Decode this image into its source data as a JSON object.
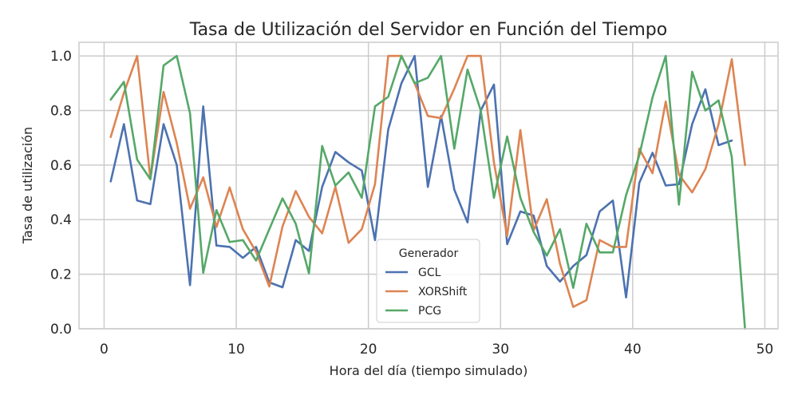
{
  "chart_data": {
    "type": "line",
    "title": "Tasa de Utilización del Servidor en Función del Tiempo",
    "xlabel": "Hora del día (tiempo simulado)",
    "ylabel": "Tasa de utilización",
    "xlim": [
      -1.9,
      51.0
    ],
    "ylim": [
      0.0,
      1.05
    ],
    "xticks": [
      0,
      10,
      20,
      30,
      40,
      50
    ],
    "yticks": [
      0.0,
      0.2,
      0.4,
      0.6,
      0.8,
      1.0
    ],
    "grid": true,
    "legend": {
      "title": "Generador",
      "placement": "bottom-center"
    },
    "x": [
      0.5,
      1.5,
      2.5,
      3.5,
      4.5,
      5.5,
      6.5,
      7.5,
      8.5,
      9.5,
      10.5,
      11.5,
      12.5,
      13.5,
      14.5,
      15.5,
      16.5,
      17.5,
      18.5,
      19.5,
      20.5,
      21.5,
      22.5,
      23.5,
      24.5,
      25.5,
      26.5,
      27.5,
      28.5,
      29.5,
      30.5,
      31.5,
      32.5,
      33.5,
      34.5,
      35.5,
      36.5,
      37.5,
      38.5,
      39.5,
      40.5,
      41.5,
      42.5,
      43.5,
      44.5,
      45.5,
      46.5,
      47.5,
      48.5
    ],
    "series": [
      {
        "name": "GCL",
        "color": "#4c72b0",
        "values": [
          0.54,
          0.75,
          0.47,
          0.457,
          0.75,
          0.6,
          0.16,
          0.815,
          0.305,
          0.3,
          0.26,
          0.3,
          0.17,
          0.152,
          0.325,
          0.285,
          0.52,
          0.648,
          0.61,
          0.58,
          0.325,
          0.73,
          0.9,
          1.0,
          0.52,
          0.78,
          0.51,
          0.39,
          0.8,
          0.895,
          0.31,
          0.43,
          0.415,
          0.23,
          0.173,
          0.23,
          0.27,
          0.43,
          0.47,
          0.115,
          0.535,
          0.645,
          0.525,
          0.53,
          0.75,
          0.878,
          0.673,
          0.69,
          null
        ]
      },
      {
        "name": "XORShift",
        "color": "#dd8452",
        "values": [
          0.703,
          0.865,
          1.0,
          0.55,
          0.868,
          0.68,
          0.44,
          0.555,
          0.373,
          0.518,
          0.365,
          0.282,
          0.155,
          0.375,
          0.505,
          0.41,
          0.35,
          0.52,
          0.315,
          0.365,
          0.53,
          1.0,
          1.0,
          0.9,
          0.78,
          0.772,
          0.88,
          1.0,
          1.0,
          0.61,
          0.34,
          0.728,
          0.36,
          0.475,
          0.238,
          0.08,
          0.105,
          0.325,
          0.3,
          0.3,
          0.66,
          0.57,
          0.833,
          0.565,
          0.5,
          0.585,
          0.75,
          0.988,
          0.6
        ]
      },
      {
        "name": "PCG",
        "color": "#55a868",
        "values": [
          0.84,
          0.905,
          0.62,
          0.548,
          0.965,
          1.0,
          0.79,
          0.205,
          0.435,
          0.318,
          0.325,
          0.25,
          0.365,
          0.478,
          0.385,
          0.203,
          0.67,
          0.525,
          0.573,
          0.48,
          0.815,
          0.85,
          1.0,
          0.9,
          0.92,
          1.0,
          0.66,
          0.95,
          0.8,
          0.48,
          0.705,
          0.48,
          0.355,
          0.268,
          0.365,
          0.15,
          0.385,
          0.28,
          0.28,
          0.49,
          0.635,
          0.848,
          1.0,
          0.455,
          0.942,
          0.8,
          0.837,
          0.63,
          0.0
        ]
      }
    ]
  }
}
